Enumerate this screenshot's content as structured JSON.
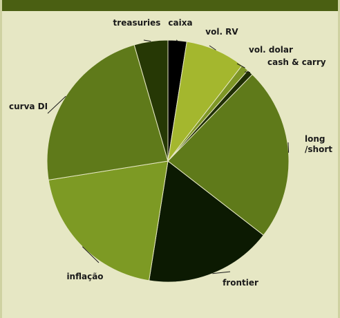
{
  "chart_data": {
    "type": "pie",
    "start_angle": 0,
    "direction": "clockwise",
    "slices": [
      {
        "label": "caixa",
        "value": 2.5,
        "color": "#000000"
      },
      {
        "label": "vol. RV",
        "value": 8.0,
        "color": "#a4b72e"
      },
      {
        "label": "vol. dolar",
        "value": 1.0,
        "color": "#7e9626"
      },
      {
        "label": "cash & carry",
        "value": 0.8,
        "color": "#1f2e05"
      },
      {
        "label": "long /short",
        "value": 23.2,
        "color": "#5f7a1a"
      },
      {
        "label": "frontier",
        "value": 17.0,
        "color": "#0c1a02"
      },
      {
        "label": "inflação",
        "value": 20.0,
        "color": "#7d9a24"
      },
      {
        "label": "curva DI",
        "value": 23.0,
        "color": "#5f7a1a"
      },
      {
        "label": "treasuries",
        "value": 4.5,
        "color": "#263805"
      }
    ]
  }
}
